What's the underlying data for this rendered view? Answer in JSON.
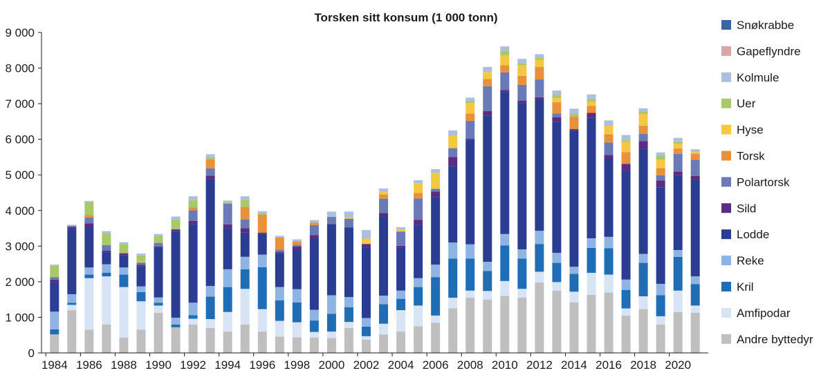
{
  "chart_data": {
    "type": "bar",
    "stacked": true,
    "title": "Torsken sitt konsum (1 000 tonn)",
    "xlabel": "",
    "ylabel": "",
    "ylim": [
      0,
      9000
    ],
    "yticks": [
      0,
      1000,
      2000,
      3000,
      4000,
      5000,
      6000,
      7000,
      8000,
      9000
    ],
    "ytick_labels": [
      "0",
      "1 000",
      "2 000",
      "3 000",
      "4 000",
      "5 000",
      "6 000",
      "7 000",
      "8 000",
      "9 000"
    ],
    "xtick_labels": [
      "1984",
      "1986",
      "1988",
      "1990",
      "1992",
      "1994",
      "1996",
      "1998",
      "2000",
      "2002",
      "2004",
      "2006",
      "2008",
      "2010",
      "2012",
      "2014",
      "2016",
      "2018",
      "2020"
    ],
    "grid": false,
    "legend_position": "right",
    "categories": [
      "1984",
      "1985",
      "1986",
      "1987",
      "1988",
      "1989",
      "1990",
      "1991",
      "1992",
      "1993",
      "1994",
      "1995",
      "1996",
      "1997",
      "1998",
      "1999",
      "2000",
      "2001",
      "2002",
      "2003",
      "2004",
      "2005",
      "2006",
      "2007",
      "2008",
      "2009",
      "2010",
      "2011",
      "2012",
      "2013",
      "2014",
      "2015",
      "2016",
      "2017",
      "2018",
      "2019",
      "2020",
      "2021"
    ],
    "series": [
      {
        "name": "Andre byttedyr",
        "color": "#bfbfbf",
        "values": [
          520,
          1200,
          650,
          800,
          430,
          650,
          1130,
          720,
          800,
          700,
          600,
          800,
          600,
          460,
          440,
          430,
          420,
          700,
          370,
          520,
          600,
          750,
          850,
          1250,
          1550,
          1500,
          1600,
          1550,
          1980,
          1750,
          1420,
          1630,
          1700,
          1050,
          1230,
          800,
          1150,
          1130
        ]
      },
      {
        "name": "Amfipodar",
        "color": "#d6e4f5",
        "values": [
          0,
          150,
          1450,
          1350,
          1420,
          800,
          200,
          0,
          160,
          250,
          550,
          1000,
          630,
          440,
          420,
          160,
          180,
          170,
          100,
          300,
          600,
          580,
          200,
          300,
          200,
          240,
          420,
          250,
          300,
          240,
          300,
          620,
          500,
          200,
          360,
          230,
          600,
          200
        ]
      },
      {
        "name": "Kril",
        "color": "#1f6eb5",
        "values": [
          140,
          60,
          100,
          100,
          350,
          260,
          80,
          80,
          100,
          630,
          700,
          550,
          1180,
          580,
          560,
          320,
          500,
          410,
          270,
          550,
          320,
          520,
          1080,
          1100,
          900,
          560,
          1000,
          850,
          780,
          540,
          500,
          700,
          740,
          520,
          940,
          590,
          950,
          600
        ]
      },
      {
        "name": "Reke",
        "color": "#8fb4e3",
        "values": [
          500,
          240,
          200,
          240,
          200,
          160,
          150,
          190,
          350,
          300,
          500,
          350,
          350,
          370,
          370,
          300,
          520,
          290,
          240,
          240,
          230,
          250,
          350,
          450,
          400,
          260,
          320,
          260,
          370,
          280,
          200,
          270,
          320,
          290,
          250,
          320,
          190,
          220
        ]
      },
      {
        "name": "Lodde",
        "color": "#2b3d92",
        "values": [
          820,
          1810,
          1110,
          340,
          340,
          560,
          1400,
          2420,
          2200,
          3000,
          1150,
          680,
          580,
          940,
          1100,
          2000,
          2000,
          1950,
          1980,
          2220,
          1200,
          1500,
          1900,
          2150,
          2930,
          4100,
          3980,
          4100,
          3700,
          3680,
          3830,
          3380,
          2200,
          3050,
          2950,
          2700,
          2100,
          2700
        ]
      },
      {
        "name": "Sild",
        "color": "#5a2d82",
        "values": [
          80,
          70,
          130,
          40,
          60,
          50,
          30,
          60,
          100,
          100,
          110,
          120,
          40,
          40,
          100,
          100,
          0,
          0,
          100,
          100,
          60,
          140,
          150,
          250,
          40,
          130,
          60,
          70,
          50,
          130,
          40,
          140,
          100,
          200,
          220,
          200,
          100,
          120
        ]
      },
      {
        "name": "Polartorsk",
        "color": "#6a7ab7",
        "values": [
          70,
          40,
          160,
          160,
          0,
          60,
          100,
          0,
          300,
          200,
          580,
          250,
          0,
          60,
          50,
          280,
          200,
          250,
          0,
          400,
          400,
          600,
          80,
          250,
          500,
          700,
          500,
          450,
          500,
          100,
          0,
          0,
          350,
          0,
          200,
          150,
          500,
          450
        ]
      },
      {
        "name": "Torsk",
        "color": "#e8913a",
        "values": [
          0,
          0,
          70,
          0,
          0,
          0,
          0,
          0,
          80,
          250,
          0,
          350,
          500,
          350,
          90,
          70,
          0,
          0,
          0,
          120,
          0,
          150,
          0,
          0,
          200,
          200,
          200,
          250,
          350,
          320,
          350,
          200,
          230,
          330,
          230,
          200,
          150,
          180
        ]
      },
      {
        "name": "Hyse",
        "color": "#f5c842",
        "values": [
          0,
          0,
          0,
          0,
          0,
          30,
          0,
          0,
          0,
          0,
          0,
          0,
          0,
          0,
          0,
          0,
          0,
          40,
          150,
          80,
          50,
          280,
          450,
          350,
          300,
          200,
          280,
          300,
          200,
          120,
          0,
          120,
          240,
          280,
          330,
          240,
          130,
          40
        ]
      },
      {
        "name": "Uer",
        "color": "#a9c86a",
        "values": [
          330,
          0,
          360,
          340,
          260,
          170,
          200,
          280,
          200,
          50,
          40,
          200,
          40,
          0,
          0,
          0,
          0,
          0,
          0,
          0,
          0,
          0,
          0,
          0,
          50,
          0,
          130,
          60,
          60,
          90,
          90,
          70,
          0,
          50,
          60,
          120,
          70,
          0
        ]
      },
      {
        "name": "Kolmule",
        "color": "#adbfde",
        "values": [
          20,
          30,
          40,
          50,
          50,
          50,
          50,
          80,
          110,
          100,
          50,
          100,
          60,
          50,
          60,
          70,
          150,
          160,
          240,
          90,
          70,
          80,
          100,
          150,
          100,
          140,
          120,
          120,
          100,
          120,
          130,
          130,
          150,
          150,
          100,
          80,
          100,
          80
        ]
      },
      {
        "name": "Gapeflyndre",
        "color": "#d9a5a5",
        "values": [
          0,
          0,
          0,
          0,
          0,
          0,
          0,
          0,
          0,
          0,
          0,
          0,
          0,
          0,
          0,
          0,
          0,
          0,
          0,
          0,
          0,
          0,
          0,
          0,
          0,
          0,
          0,
          0,
          0,
          0,
          0,
          0,
          0,
          0,
          0,
          0,
          0,
          0
        ]
      },
      {
        "name": "Snøkrabbe",
        "color": "#3a64a3",
        "values": [
          0,
          0,
          0,
          0,
          0,
          0,
          0,
          0,
          0,
          0,
          0,
          0,
          0,
          0,
          0,
          0,
          0,
          0,
          0,
          0,
          0,
          0,
          0,
          0,
          0,
          0,
          0,
          0,
          0,
          0,
          0,
          0,
          0,
          0,
          0,
          0,
          0,
          0
        ]
      }
    ]
  }
}
